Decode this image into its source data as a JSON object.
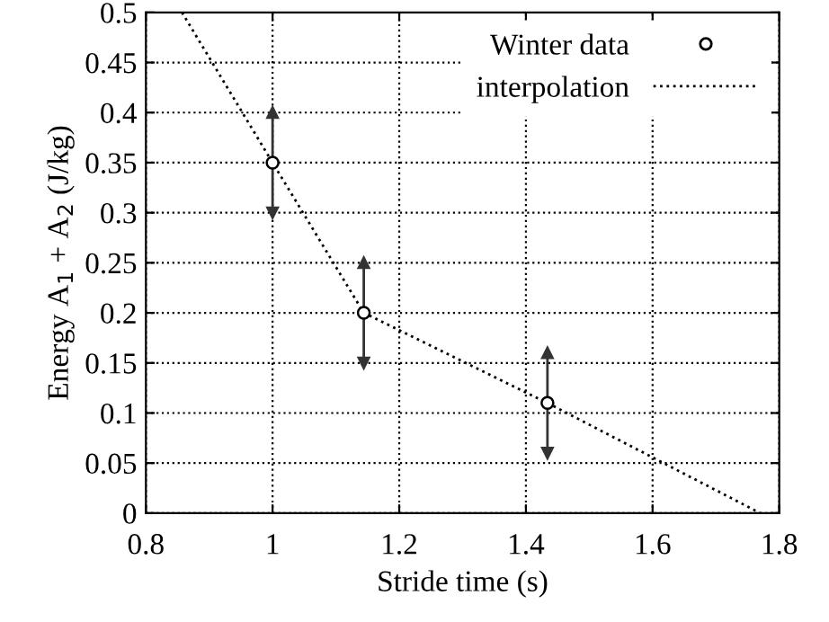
{
  "chart_data": {
    "type": "scatter",
    "xlabel": "Stride time (s)",
    "ylabel": "Energy A$_{1}$ + A$_{2}$ (J/kg)",
    "series": [
      {
        "name": "Winter data",
        "color": "#000000",
        "marker": "circle",
        "x": [
          1.0,
          1.144,
          1.434
        ],
        "values": [
          0.35,
          0.2,
          0.11
        ],
        "errors": [
          0.05,
          0.05,
          0.05
        ]
      },
      {
        "name": "interpolation",
        "type": "line",
        "color": "#000000",
        "marker": "none",
        "line_style": "dotted",
        "x": [
          0.857,
          1.0,
          1.144,
          1.434,
          1.77
        ],
        "values": [
          0.5,
          0.35,
          0.2,
          0.11,
          0.0
        ]
      }
    ],
    "xlim": [
      0.8,
      1.8
    ],
    "xticks": [
      0.8,
      1,
      1.2,
      1.4,
      1.6,
      1.8
    ],
    "ylim": [
      0,
      0.5
    ],
    "yticks": [
      0,
      0.05,
      0.1,
      0.15,
      0.2,
      0.25,
      0.3,
      0.35,
      0.4,
      0.45,
      0.5
    ],
    "grid": true,
    "legend": "top right"
  }
}
